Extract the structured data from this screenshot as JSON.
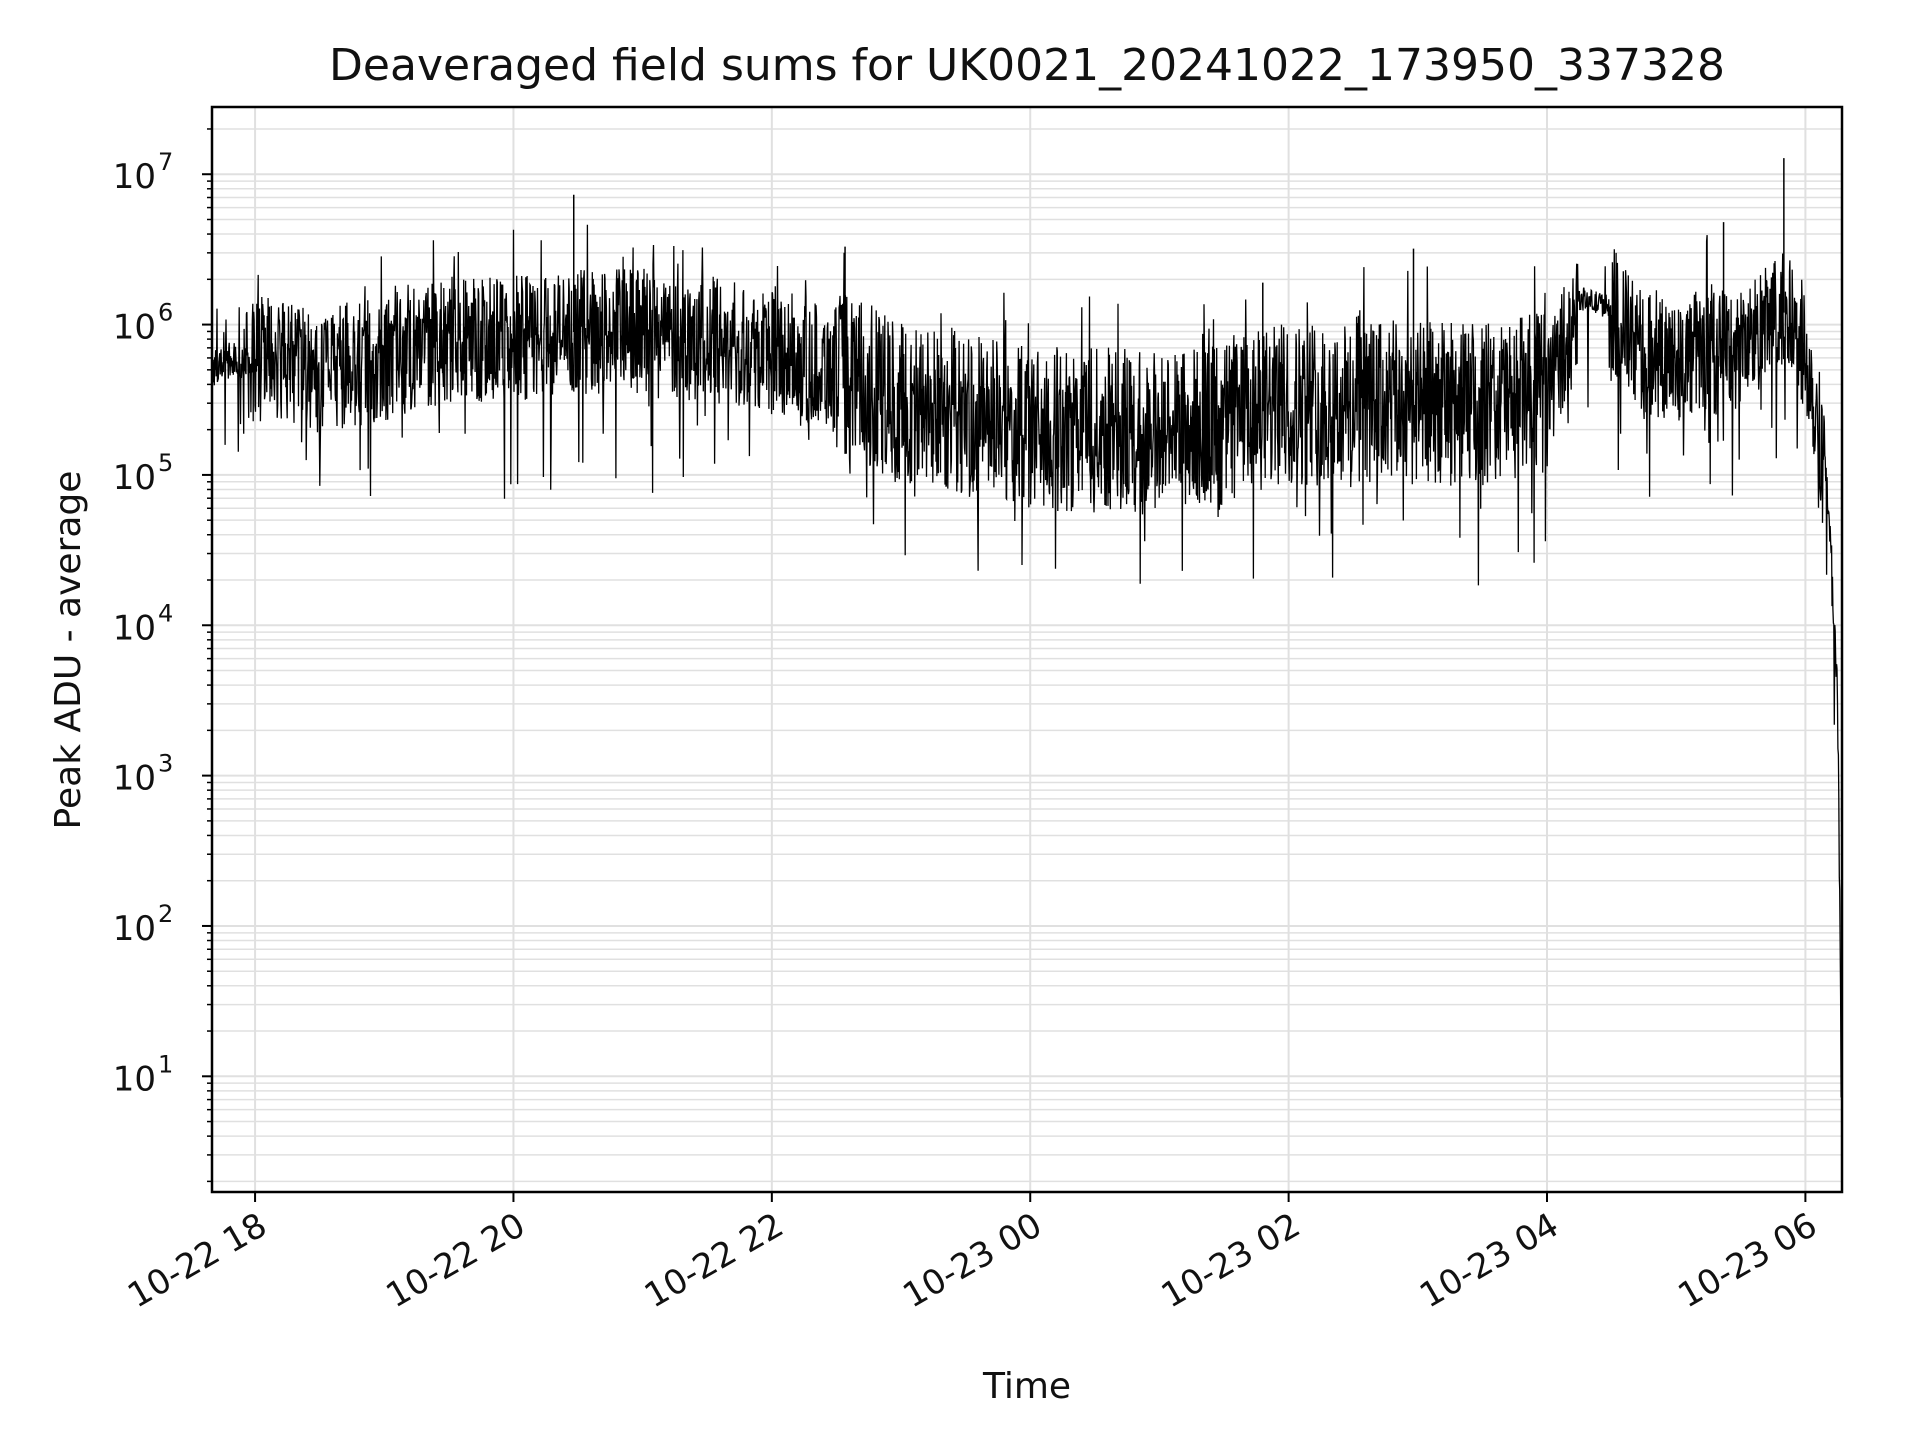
{
  "chart_data": {
    "type": "line",
    "title": "Deaveraged field sums for UK0021_20241022_173950_337328",
    "xlabel": "Time",
    "ylabel": "Peak ADU - average",
    "yscale": "log",
    "ylim": [
      1.7,
      28000000
    ],
    "xlim": [
      "2024-10-22 17:40",
      "2024-10-23 06:17"
    ],
    "x_ticks": [
      "2024-10-22 18:00",
      "2024-10-22 20:00",
      "2024-10-22 22:00",
      "2024-10-23 00:00",
      "2024-10-23 02:00",
      "2024-10-23 04:00",
      "2024-10-23 06:00"
    ],
    "x_tick_labels": [
      "10-22 18",
      "10-22 20",
      "10-22 22",
      "10-23 00",
      "10-23 02",
      "10-23 04",
      "10-23 06"
    ],
    "y_ticks": [
      1,
      2,
      3,
      4,
      5,
      6,
      7
    ],
    "y_tick_base": "10",
    "grid": true,
    "line_color": "#000000",
    "grid_color": "#e0e0e0",
    "series": [
      {
        "x": [
          "2024-10-22 17:40",
          "2024-10-22 17:50",
          "2024-10-22 17:58",
          "2024-10-22 18:00",
          "2024-10-22 18:30",
          "2024-10-22 19:00",
          "2024-10-22 19:30",
          "2024-10-22 20:00",
          "2024-10-22 20:30",
          "2024-10-22 21:00",
          "2024-10-22 21:30",
          "2024-10-22 22:00",
          "2024-10-22 22:30",
          "2024-10-22 23:00",
          "2024-10-22 23:30",
          "2024-10-23 00:00",
          "2024-10-23 00:30",
          "2024-10-23 01:00",
          "2024-10-23 01:30",
          "2024-10-23 02:00",
          "2024-10-23 02:30",
          "2024-10-23 03:00",
          "2024-10-23 03:30",
          "2024-10-23 04:00",
          "2024-10-23 04:15",
          "2024-10-23 04:30",
          "2024-10-23 04:45",
          "2024-10-23 05:00",
          "2024-10-23 05:30",
          "2024-10-23 05:50",
          "2024-10-23 06:00",
          "2024-10-23 06:10",
          "2024-10-23 06:15",
          "2024-10-23 06:17"
        ],
        "y": [
          500000,
          600000,
          550000,
          600000,
          500000,
          600000,
          800000,
          800000,
          900000,
          900000,
          800000,
          700000,
          500000,
          300000,
          250000,
          200000,
          200000,
          200000,
          220000,
          300000,
          300000,
          300000,
          300000,
          350000,
          1500000,
          1300000,
          600000,
          600000,
          700000,
          1200000,
          700000,
          100000,
          3000,
          4
        ]
      }
    ],
    "annotations": {
      "spikes": [
        {
          "x": "2024-10-22 20:28",
          "y": 7300000
        },
        {
          "x": "2024-10-22 22:34",
          "y": 3300000
        },
        {
          "x": "2024-10-23 01:48",
          "y": 1900000
        },
        {
          "x": "2024-10-23 02:58",
          "y": 3200000
        },
        {
          "x": "2024-10-23 05:22",
          "y": 4800000
        },
        {
          "x": "2024-10-23 05:50",
          "y": 12800000
        }
      ]
    }
  }
}
